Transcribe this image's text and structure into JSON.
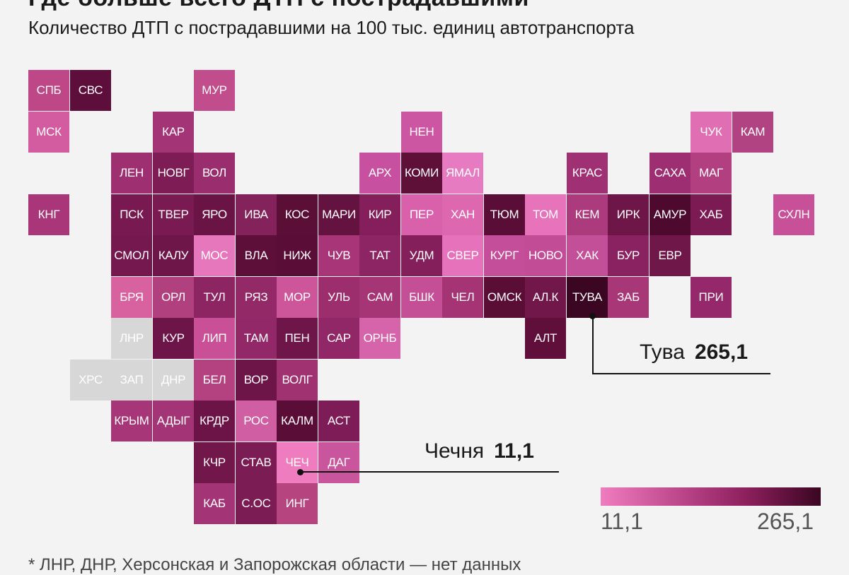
{
  "header": {
    "title_partial": "Где больше всего ДТП с пострадавшими",
    "subtitle": "Количество ДТП с пострадавшими на 100 тыс. единиц автотранспорта"
  },
  "colors": {
    "scale_min": "#f07cc0",
    "scale_max": "#3a0622",
    "no_data": "#d7d7d7"
  },
  "regions": [
    {
      "label": "СПБ",
      "col": 0,
      "row": 0,
      "color": "#bd4787"
    },
    {
      "label": "СВС",
      "col": 1,
      "row": 0,
      "color": "#5e0e3a"
    },
    {
      "label": "МУР",
      "col": 4,
      "row": 0,
      "color": "#c24d8c"
    },
    {
      "label": "МСК",
      "col": 0,
      "row": 1,
      "color": "#d25c9f"
    },
    {
      "label": "КАР",
      "col": 3,
      "row": 1,
      "color": "#a33577"
    },
    {
      "label": "НЕН",
      "col": 9,
      "row": 1,
      "color": "#cd56a2"
    },
    {
      "label": "ЧУК",
      "col": 16,
      "row": 1,
      "color": "#e06eb3"
    },
    {
      "label": "КАМ",
      "col": 17,
      "row": 1,
      "color": "#b14383"
    },
    {
      "label": "ЛЕН",
      "col": 2,
      "row": 2,
      "color": "#9e2f70"
    },
    {
      "label": "НОВГ",
      "col": 3,
      "row": 2,
      "color": "#7d1c55"
    },
    {
      "label": "ВОЛ",
      "col": 4,
      "row": 2,
      "color": "#9a2d6e"
    },
    {
      "label": "АРХ",
      "col": 8,
      "row": 2,
      "color": "#c850a0"
    },
    {
      "label": "КОМИ",
      "col": 9,
      "row": 2,
      "color": "#5e1038"
    },
    {
      "label": "ЯМАЛ",
      "col": 10,
      "row": 2,
      "color": "#e77bc1"
    },
    {
      "label": "КРАС",
      "col": 13,
      "row": 2,
      "color": "#9e3073"
    },
    {
      "label": "САХА",
      "col": 15,
      "row": 2,
      "color": "#9c2e71"
    },
    {
      "label": "МАГ",
      "col": 16,
      "row": 2,
      "color": "#b24080"
    },
    {
      "label": "КНГ",
      "col": 0,
      "row": 3,
      "color": "#a83679"
    },
    {
      "label": "ПСК",
      "col": 2,
      "row": 3,
      "color": "#781a51"
    },
    {
      "label": "ТВЕР",
      "col": 3,
      "row": 3,
      "color": "#7a1a52"
    },
    {
      "label": "ЯРО",
      "col": 4,
      "row": 3,
      "color": "#6a1446"
    },
    {
      "label": "ИВА",
      "col": 5,
      "row": 3,
      "color": "#84225b"
    },
    {
      "label": "КОС",
      "col": 6,
      "row": 3,
      "color": "#5b0e36"
    },
    {
      "label": "МАРИ",
      "col": 7,
      "row": 3,
      "color": "#641240"
    },
    {
      "label": "КИР",
      "col": 8,
      "row": 3,
      "color": "#851f5c"
    },
    {
      "label": "ПЕР",
      "col": 9,
      "row": 3,
      "color": "#d961ab"
    },
    {
      "label": "ХАН",
      "col": 10,
      "row": 3,
      "color": "#de68b0"
    },
    {
      "label": "ТЮМ",
      "col": 11,
      "row": 3,
      "color": "#5a0d36"
    },
    {
      "label": "ТОМ",
      "col": 12,
      "row": 3,
      "color": "#e773bb"
    },
    {
      "label": "КЕМ",
      "col": 13,
      "row": 3,
      "color": "#ac3b7e"
    },
    {
      "label": "ИРК",
      "col": 14,
      "row": 3,
      "color": "#6d1647"
    },
    {
      "label": "АМУР",
      "col": 15,
      "row": 3,
      "color": "#4d0a2e"
    },
    {
      "label": "ХАБ",
      "col": 16,
      "row": 3,
      "color": "#7b1a53"
    },
    {
      "label": "СХЛН",
      "col": 18,
      "row": 3,
      "color": "#c85099"
    },
    {
      "label": "СМОЛ",
      "col": 2,
      "row": 4,
      "color": "#74184f"
    },
    {
      "label": "КАЛУ",
      "col": 3,
      "row": 4,
      "color": "#6e1649"
    },
    {
      "label": "МОС",
      "col": 4,
      "row": 4,
      "color": "#e777bd"
    },
    {
      "label": "ВЛА",
      "col": 5,
      "row": 4,
      "color": "#5e0f39"
    },
    {
      "label": "НИЖ",
      "col": 6,
      "row": 4,
      "color": "#5a0d36"
    },
    {
      "label": "ЧУВ",
      "col": 7,
      "row": 4,
      "color": "#a73577"
    },
    {
      "label": "ТАТ",
      "col": 8,
      "row": 4,
      "color": "#8d2564"
    },
    {
      "label": "УДМ",
      "col": 9,
      "row": 4,
      "color": "#841f5c"
    },
    {
      "label": "СВЕР",
      "col": 10,
      "row": 4,
      "color": "#e672bb"
    },
    {
      "label": "КУРГ",
      "col": 11,
      "row": 4,
      "color": "#c44e99"
    },
    {
      "label": "НОВО",
      "col": 12,
      "row": 4,
      "color": "#c24c95"
    },
    {
      "label": "ХАК",
      "col": 13,
      "row": 4,
      "color": "#c34f99"
    },
    {
      "label": "БУР",
      "col": 14,
      "row": 4,
      "color": "#8a2262"
    },
    {
      "label": "ЕВР",
      "col": 15,
      "row": 4,
      "color": "#701749"
    },
    {
      "label": "БРЯ",
      "col": 2,
      "row": 5,
      "color": "#d7629f"
    },
    {
      "label": "ОРЛ",
      "col": 3,
      "row": 5,
      "color": "#b0407e"
    },
    {
      "label": "ТУЛ",
      "col": 4,
      "row": 5,
      "color": "#8d2562"
    },
    {
      "label": "РЯЗ",
      "col": 5,
      "row": 5,
      "color": "#932967"
    },
    {
      "label": "МОР",
      "col": 6,
      "row": 5,
      "color": "#cd5599"
    },
    {
      "label": "УЛЬ",
      "col": 7,
      "row": 5,
      "color": "#9c2e6e"
    },
    {
      "label": "САМ",
      "col": 8,
      "row": 5,
      "color": "#a63576"
    },
    {
      "label": "БШК",
      "col": 9,
      "row": 5,
      "color": "#c54f97"
    },
    {
      "label": "ЧЕЛ",
      "col": 10,
      "row": 5,
      "color": "#a43474"
    },
    {
      "label": "ОМСК",
      "col": 11,
      "row": 5,
      "color": "#5a0d35"
    },
    {
      "label": "АЛ.К",
      "col": 12,
      "row": 5,
      "color": "#711749"
    },
    {
      "label": "ТУВА",
      "col": 13,
      "row": 5,
      "color": "#3a0622"
    },
    {
      "label": "ЗАБ",
      "col": 14,
      "row": 5,
      "color": "#a73777"
    },
    {
      "label": "ПРИ",
      "col": 16,
      "row": 5,
      "color": "#94286a"
    },
    {
      "label": "ЛНР",
      "col": 2,
      "row": 6,
      "nodata": true
    },
    {
      "label": "КУР",
      "col": 3,
      "row": 6,
      "color": "#6d1548"
    },
    {
      "label": "ЛИП",
      "col": 4,
      "row": 6,
      "color": "#c95097"
    },
    {
      "label": "ТАМ",
      "col": 5,
      "row": 6,
      "color": "#932868"
    },
    {
      "label": "ПЕН",
      "col": 6,
      "row": 6,
      "color": "#6e1649"
    },
    {
      "label": "САР",
      "col": 7,
      "row": 6,
      "color": "#912766"
    },
    {
      "label": "ОРНБ",
      "col": 8,
      "row": 6,
      "color": "#d664ab"
    },
    {
      "label": "АЛТ",
      "col": 12,
      "row": 6,
      "color": "#5f0f3a"
    },
    {
      "label": "ХРС",
      "col": 1,
      "row": 7,
      "nodata": true
    },
    {
      "label": "ЗАП",
      "col": 2,
      "row": 7,
      "nodata": true
    },
    {
      "label": "ДНР",
      "col": 3,
      "row": 7,
      "nodata": true
    },
    {
      "label": "БЕЛ",
      "col": 4,
      "row": 7,
      "color": "#b54280"
    },
    {
      "label": "ВОР",
      "col": 5,
      "row": 7,
      "color": "#6d1548"
    },
    {
      "label": "ВОЛГ",
      "col": 6,
      "row": 7,
      "color": "#a03272"
    },
    {
      "label": "КРЫМ",
      "col": 2,
      "row": 8,
      "color": "#a63677"
    },
    {
      "label": "АДЫГ",
      "col": 3,
      "row": 8,
      "color": "#a33475"
    },
    {
      "label": "КРДР",
      "col": 4,
      "row": 8,
      "color": "#6c1447"
    },
    {
      "label": "РОС",
      "col": 5,
      "row": 8,
      "color": "#cf5ea3"
    },
    {
      "label": "КАЛМ",
      "col": 6,
      "row": 8,
      "color": "#5a0d36"
    },
    {
      "label": "АСТ",
      "col": 7,
      "row": 8,
      "color": "#7d1c56"
    },
    {
      "label": "КЧР",
      "col": 4,
      "row": 9,
      "color": "#711749"
    },
    {
      "label": "СТАВ",
      "col": 5,
      "row": 9,
      "color": "#7c1c55"
    },
    {
      "label": "ЧЕЧ",
      "col": 6,
      "row": 9,
      "color": "#f07cc0"
    },
    {
      "label": "ДАГ",
      "col": 7,
      "row": 9,
      "color": "#c9559c"
    },
    {
      "label": "КАБ",
      "col": 4,
      "row": 10,
      "color": "#a33475"
    },
    {
      "label": "С.ОС",
      "col": 5,
      "row": 10,
      "color": "#7c1c55"
    },
    {
      "label": "ИНГ",
      "col": 6,
      "row": 10,
      "color": "#b6447f"
    }
  ],
  "callouts": {
    "max": {
      "name": "Тува",
      "value": "265,1"
    },
    "min": {
      "name": "Чечня",
      "value": "11,1"
    }
  },
  "legend": {
    "min": "11,1",
    "max": "265,1"
  },
  "footnote_partial": "* ЛНР, ДНР, Херсонская и Запорожская области — нет данных"
}
